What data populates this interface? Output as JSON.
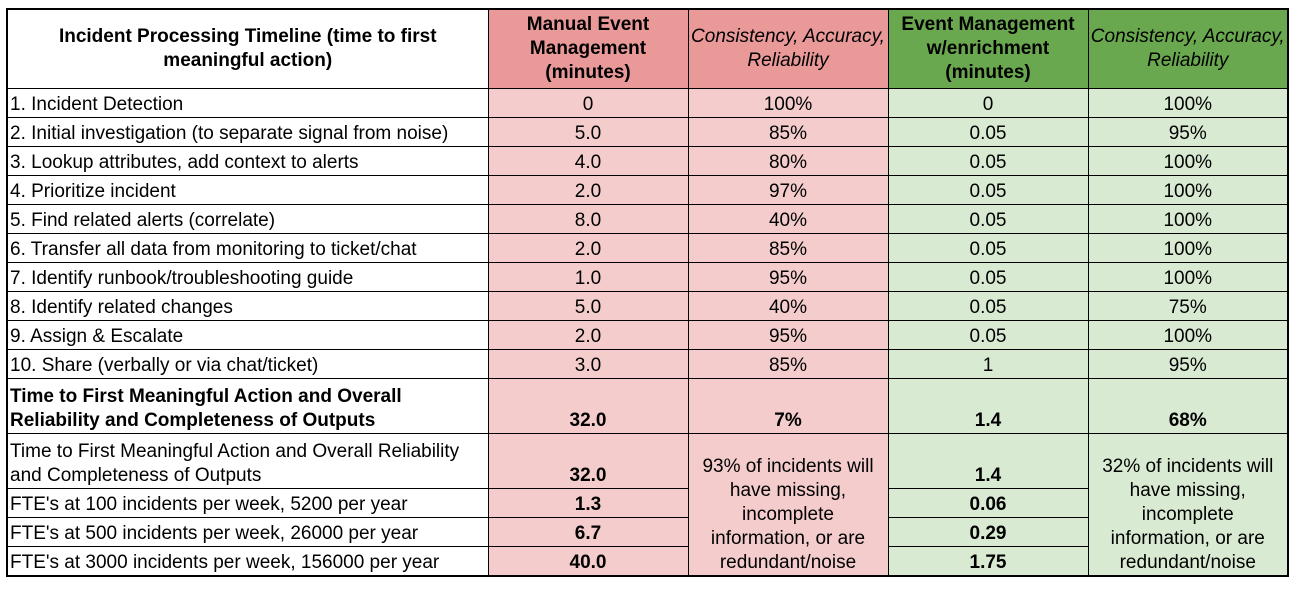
{
  "header": {
    "col1": "Incident Processing Timeline (time to first meaningful action)",
    "col2": "Manual Event Management (minutes)",
    "col3": "Consistency, Accuracy, Reliability",
    "col4": "Event Management w/enrichment (minutes)",
    "col5": "Consistency, Accuracy, Reliability"
  },
  "rows": [
    {
      "label": "1. Incident Detection",
      "manual": "0",
      "manual_rel": "100%",
      "enrich": "0",
      "enrich_rel": "100%"
    },
    {
      "label": "2. Initial investigation (to separate signal from noise)",
      "manual": "5.0",
      "manual_rel": "85%",
      "enrich": "0.05",
      "enrich_rel": "95%"
    },
    {
      "label": "3. Lookup attributes, add context to alerts",
      "manual": "4.0",
      "manual_rel": "80%",
      "enrich": "0.05",
      "enrich_rel": "100%"
    },
    {
      "label": "4. Prioritize incident",
      "manual": "2.0",
      "manual_rel": "97%",
      "enrich": "0.05",
      "enrich_rel": "100%"
    },
    {
      "label": "5. Find related alerts (correlate)",
      "manual": "8.0",
      "manual_rel": "40%",
      "enrich": "0.05",
      "enrich_rel": "100%"
    },
    {
      "label": "6. Transfer all data from monitoring to ticket/chat",
      "manual": "2.0",
      "manual_rel": "85%",
      "enrich": "0.05",
      "enrich_rel": "100%"
    },
    {
      "label": "7. Identify runbook/troubleshooting guide",
      "manual": "1.0",
      "manual_rel": "95%",
      "enrich": "0.05",
      "enrich_rel": "100%"
    },
    {
      "label": "8. Identify related changes",
      "manual": "5.0",
      "manual_rel": "40%",
      "enrich": "0.05",
      "enrich_rel": "75%"
    },
    {
      "label": "9. Assign & Escalate",
      "manual": "2.0",
      "manual_rel": "95%",
      "enrich": "0.05",
      "enrich_rel": "100%"
    },
    {
      "label": "10. Share (verbally or via chat/ticket)",
      "manual": "3.0",
      "manual_rel": "85%",
      "enrich": "1",
      "enrich_rel": "95%"
    }
  ],
  "summary": {
    "label": "Time to First Meaningful Action and Overall Reliability and Completeness of Outputs",
    "manual": "32.0",
    "manual_rel": "7%",
    "enrich": "1.4",
    "enrich_rel": "68%"
  },
  "summary2": {
    "label": "Time to First Meaningful Action and Overall Reliability and Completeness of Outputs",
    "manual": "32.0",
    "enrich": "1.4"
  },
  "notes": {
    "manual": "93% of incidents will have missing, incomplete information, or are redundant/noise",
    "enrich": "32% of incidents will have missing, incomplete information, or are redundant/noise"
  },
  "fte": [
    {
      "label": "FTE's at 100 incidents per week, 5200 per year",
      "manual": "1.3",
      "enrich": "0.06"
    },
    {
      "label": "FTE's at 500 incidents per week, 26000 per year",
      "manual": "6.7",
      "enrich": "0.29"
    },
    {
      "label": "FTE's at 3000 incidents per week, 156000 per year",
      "manual": "40.0",
      "enrich": "1.75"
    }
  ],
  "colors": {
    "manual_header": "#ea9999",
    "manual_cell": "#f4cccc",
    "enrich_header": "#6aa84f",
    "enrich_cell": "#d9ead3"
  }
}
